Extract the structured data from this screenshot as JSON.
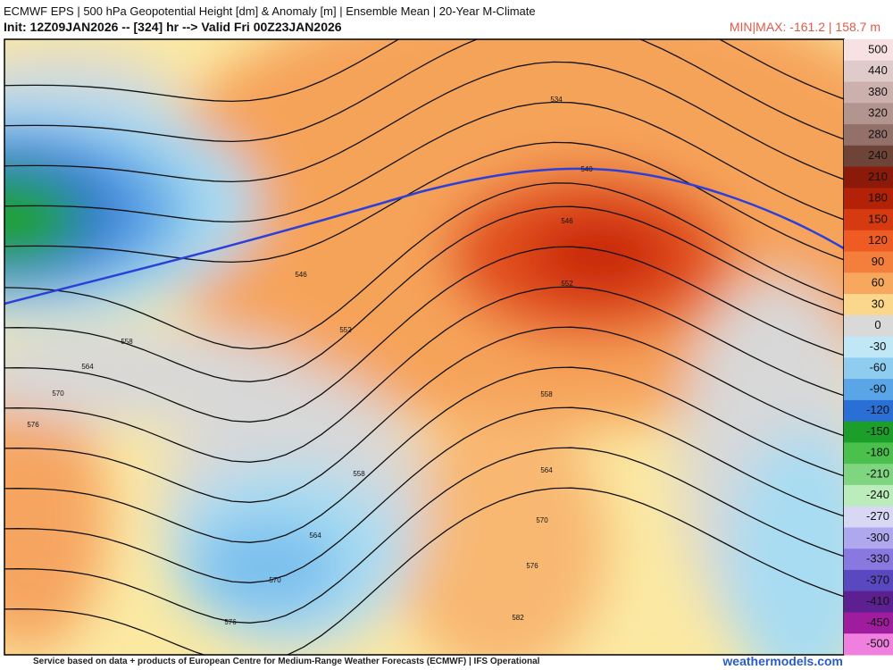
{
  "header": {
    "title": "ECMWF EPS | 500 hPa Geopotential Height [dm] & Anomaly [m] | Ensemble Mean | 20-Year M-Climate",
    "init": "Init: 12Z09JAN2026 -- [324] hr --> Valid Fri 00Z23JAN2026",
    "minmax": "MIN|MAX: -161.2 | 158.7 m"
  },
  "colorbar": {
    "labels": [
      500,
      440,
      380,
      320,
      280,
      240,
      210,
      180,
      150,
      120,
      90,
      60,
      30,
      0,
      -30,
      -60,
      -90,
      -120,
      -150,
      -180,
      -210,
      -240,
      -270,
      -300,
      -330,
      -370,
      -410,
      -450,
      -500
    ],
    "colors": [
      "#f7e1e3",
      "#e0cbcb",
      "#cbb0ae",
      "#b39590",
      "#93716a",
      "#6f4438",
      "#8b1a0a",
      "#b32208",
      "#d63a10",
      "#ee5c24",
      "#f47f3c",
      "#f8a85e",
      "#fbd78c",
      "#d9d9d9",
      "#bfe7f5",
      "#8ecdf0",
      "#5aa5e8",
      "#2a6fd6",
      "#1c9e2a",
      "#4cc04c",
      "#80d680",
      "#bbecbb",
      "#d8d8f4",
      "#b0a8ee",
      "#8878e0",
      "#5a48c0",
      "#5c2090",
      "#a01c9e",
      "#f080e0"
    ]
  },
  "contour_labels": [
    534,
    540,
    546,
    546,
    552,
    552,
    558,
    558,
    564,
    564,
    564,
    570,
    570,
    570,
    576,
    576,
    576,
    558,
    582
  ],
  "footer": {
    "credit": "Service based on data + products of European Centre for Medium-Range Weather Forecasts (ECMWF) | IFS Operational",
    "brand": "weathermodels.com"
  }
}
